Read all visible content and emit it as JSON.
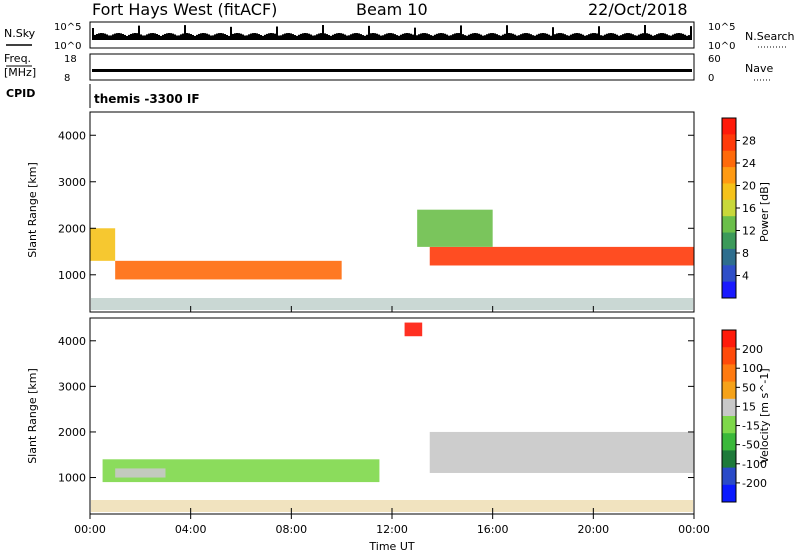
{
  "header": {
    "title": "Fort Hays West (fitACF)",
    "beam": "Beam 10",
    "date": "22/Oct/2018"
  },
  "top_panels": {
    "nsky_label": "N.Sky",
    "nsky_ticks": [
      "10^5",
      "10^0"
    ],
    "nsearch_label": "N.Search",
    "nsearch_ticks": [
      "10^5",
      "10^0"
    ],
    "freq_label": "Freq.",
    "freq_unit": "[MHz]",
    "freq_ticks": [
      "18",
      "8"
    ],
    "nave_label": "Nave",
    "nave_ticks": [
      "60",
      "0"
    ],
    "cpid_label": "CPID",
    "cpid_value": "themis -3300 IF"
  },
  "chart_data": [
    {
      "type": "heatmap",
      "name": "power",
      "ylabel": "Slant Range [km]",
      "ylim": [
        200,
        4500
      ],
      "yticks": [
        "4000",
        "3000",
        "2000",
        "1000"
      ],
      "xlim": [
        "00:00",
        "24:00"
      ],
      "colorbar": {
        "label": "Power [dB]",
        "ticks": [
          "28",
          "24",
          "20",
          "16",
          "12",
          "8",
          "4"
        ],
        "range": [
          0,
          32
        ],
        "colors": [
          "#1a1aff",
          "#2f4fc8",
          "#2e6e8e",
          "#3c9a5a",
          "#6bbf4a",
          "#c8d83a",
          "#f5c21a",
          "#ff9a12",
          "#ff6a0a",
          "#ff3a0a",
          "#ff1a0a"
        ]
      },
      "features": [
        {
          "hours": [
            0.0,
            1.0
          ],
          "range_km": [
            1300,
            2000
          ],
          "level_db": 18
        },
        {
          "hours": [
            1.0,
            10.0
          ],
          "range_km": [
            900,
            1300
          ],
          "level_db": 26
        },
        {
          "hours": [
            13.5,
            24.0
          ],
          "range_km": [
            1200,
            1600
          ],
          "level_db": 27
        },
        {
          "hours": [
            13.0,
            16.0
          ],
          "range_km": [
            1600,
            2400
          ],
          "level_db": 12
        }
      ]
    },
    {
      "type": "heatmap",
      "name": "velocity",
      "ylabel": "Slant Range [km]",
      "ylim": [
        200,
        4500
      ],
      "yticks": [
        "4000",
        "3000",
        "2000",
        "1000"
      ],
      "xlim": [
        "00:00",
        "24:00"
      ],
      "colorbar": {
        "label": "Velocity [m s^-1]",
        "ticks": [
          "200",
          "100",
          "50",
          "15",
          "-15",
          "-50",
          "-100",
          "-200"
        ],
        "range": [
          -250,
          250
        ],
        "colors": [
          "#0a1aff",
          "#2a4ac8",
          "#1e7a3a",
          "#3ab83a",
          "#7ed84a",
          "#c8c8c8",
          "#f5a21a",
          "#ff7a10",
          "#ff4a0a",
          "#ff1a0a"
        ]
      },
      "features": [
        {
          "hours": [
            0.5,
            11.5
          ],
          "range_km": [
            900,
            1400
          ],
          "velocity_ms": -40
        },
        {
          "hours": [
            1.0,
            3.0
          ],
          "range_km": [
            1000,
            1200
          ],
          "velocity_ms": 40
        },
        {
          "hours": [
            13.5,
            24.0
          ],
          "range_km": [
            1100,
            2000
          ],
          "velocity_ms": 0
        },
        {
          "hours": [
            12.5,
            13.2
          ],
          "range_km": [
            4100,
            4400
          ],
          "velocity_ms": 220
        }
      ]
    }
  ],
  "xaxis": {
    "ticks": [
      "00:00",
      "04:00",
      "08:00",
      "12:00",
      "16:00",
      "20:00",
      "00:00"
    ],
    "label": "Time UT"
  }
}
